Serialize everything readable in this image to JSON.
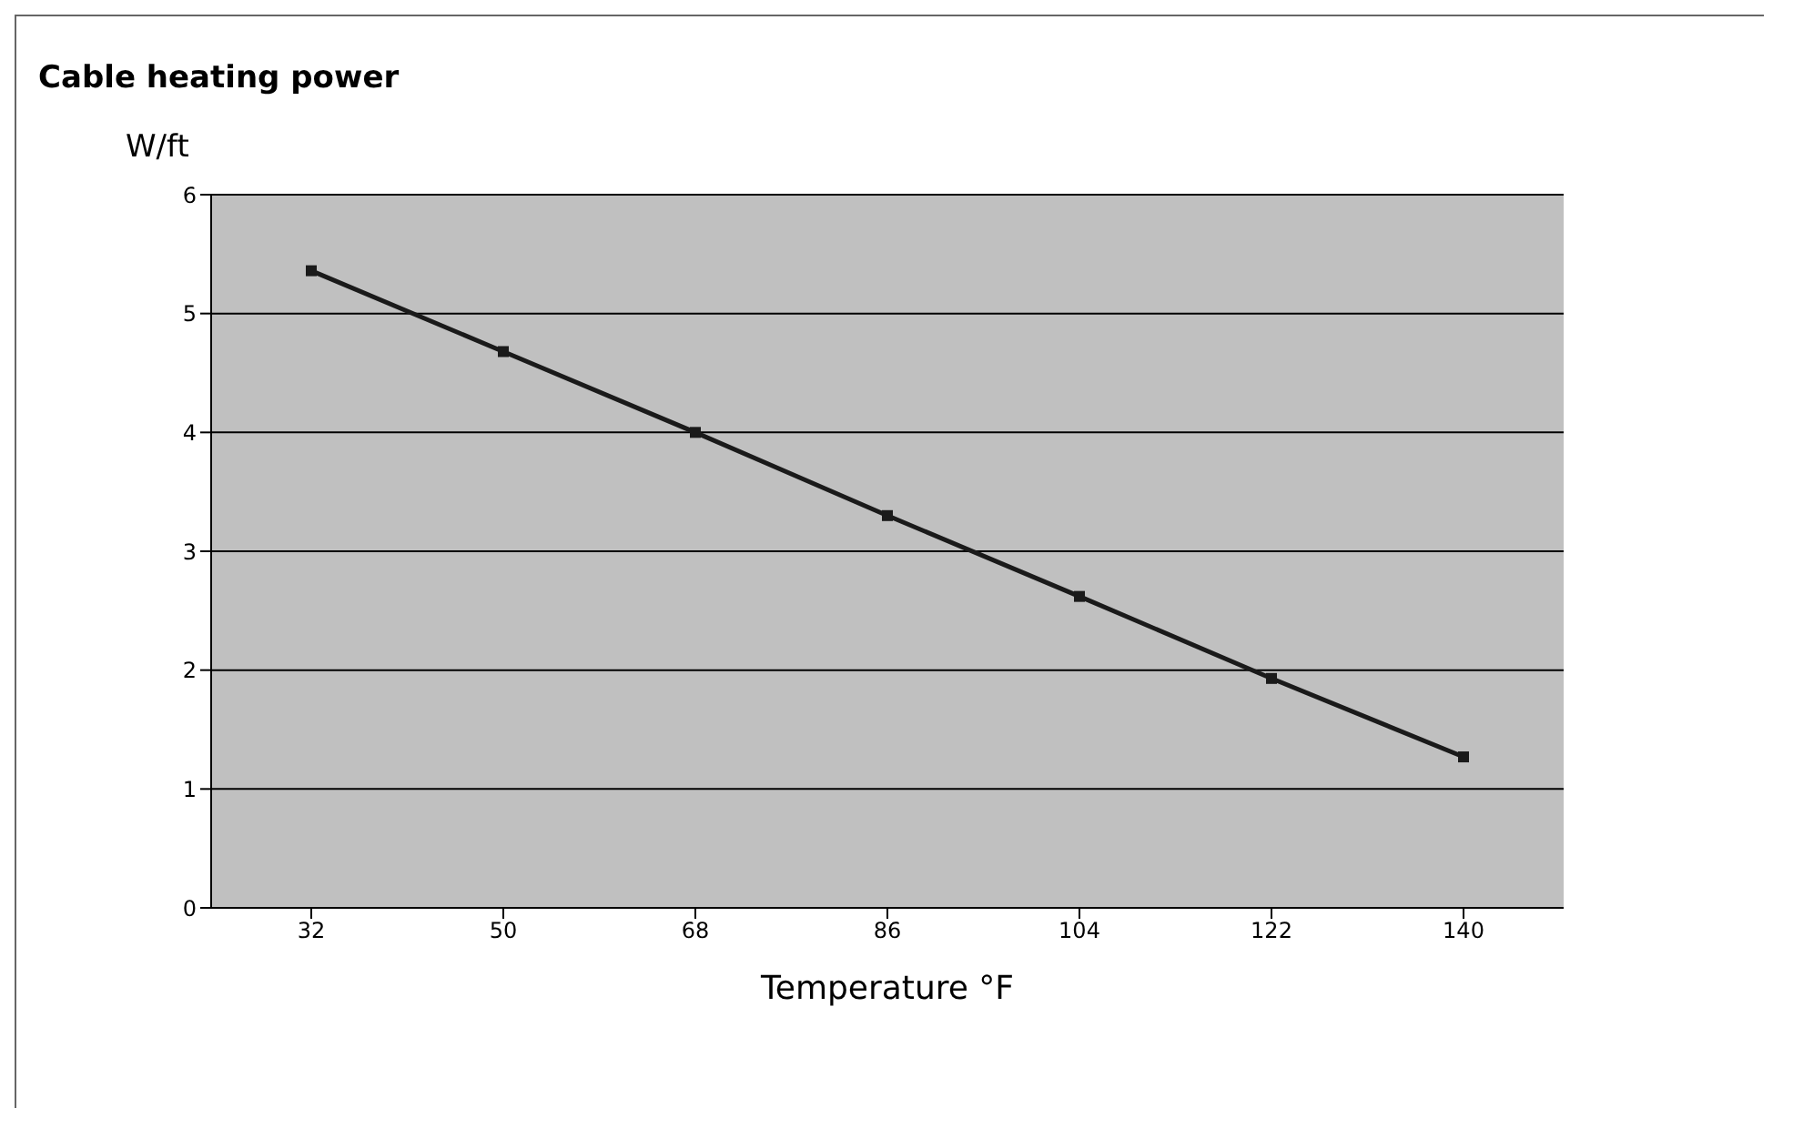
{
  "chart_data": {
    "type": "line",
    "title": "Cable heating power",
    "xlabel": "Temperature °F",
    "ylabel": "W/ft",
    "categories": [
      "32",
      "50",
      "68",
      "86",
      "104",
      "122",
      "140"
    ],
    "series": [
      {
        "color": "#1a1a1a",
        "values": [
          5.36,
          4.68,
          4.0,
          3.3,
          2.62,
          1.93,
          1.27
        ]
      }
    ],
    "ylim": [
      0,
      6
    ],
    "yticks": [
      0,
      1,
      2,
      3,
      4,
      5,
      6
    ],
    "grid": "y",
    "marker": "square",
    "line_style": "solid"
  }
}
